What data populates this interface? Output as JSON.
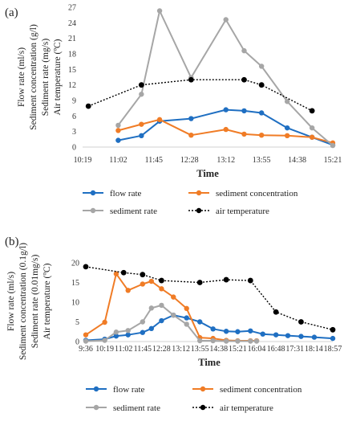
{
  "chart_data": [
    {
      "panel": "(a)",
      "type": "line",
      "ylabel": [
        "Flow rate (ml/s)",
        "Sediment concentration (g/l)",
        "Sediment rate (mg/s)",
        "Air temperature (ºC)"
      ],
      "xlabel": "Time",
      "ylim": [
        0,
        27
      ],
      "yticks": [
        "0",
        "3",
        "6",
        "9",
        "12",
        "15",
        "18",
        "21",
        "24",
        "27"
      ],
      "xlim": [
        "10:19",
        "15:21"
      ],
      "xticks": [
        "10:19",
        "11:02",
        "11:45",
        "12:28",
        "13:12",
        "13:55",
        "14:38",
        "15:21"
      ],
      "series": [
        {
          "name": "flow rate",
          "color": "#1f6fc2",
          "x": [
            "11:02",
            "11:30",
            "11:52",
            "12:30",
            "13:12",
            "13:34",
            "13:55",
            "14:26",
            "14:56",
            "15:21"
          ],
          "y": [
            1.3,
            2.2,
            5.0,
            5.5,
            7.2,
            7.0,
            6.6,
            3.7,
            1.9,
            0.4
          ]
        },
        {
          "name": "sediment concentration",
          "color": "#f07c26",
          "x": [
            "11:02",
            "11:30",
            "11:52",
            "12:30",
            "13:12",
            "13:34",
            "13:55",
            "14:26",
            "14:56",
            "15:21"
          ],
          "y": [
            3.2,
            4.4,
            5.3,
            2.3,
            3.4,
            2.5,
            2.3,
            2.2,
            1.9,
            0.8
          ]
        },
        {
          "name": "sediment rate",
          "color": "#a6a6a6",
          "x": [
            "11:02",
            "11:30",
            "11:52",
            "12:30",
            "13:12",
            "13:34",
            "13:55",
            "14:26",
            "14:56",
            "15:21"
          ],
          "y": [
            4.2,
            10.2,
            26.3,
            13.4,
            24.6,
            18.6,
            15.6,
            8.8,
            3.7,
            0.3
          ]
        },
        {
          "name": "air temperature",
          "color": "#000000",
          "x": [
            "10:26",
            "11:30",
            "12:30",
            "13:34",
            "13:55",
            "14:56"
          ],
          "y": [
            7.9,
            12.0,
            13.0,
            13.0,
            12.0,
            7.0
          ]
        }
      ],
      "legend": "bottom"
    },
    {
      "panel": "(b)",
      "type": "line",
      "ylabel": [
        "Flow rate (ml/s)",
        "Sediment concentration (0.1g/l)",
        "Sediment rate (0.01mg/s)",
        "Air temperature (ºC)"
      ],
      "xlabel": "Time",
      "ylim": [
        0,
        20
      ],
      "yticks": [
        "0",
        "5",
        "10",
        "15",
        "20"
      ],
      "xlim": [
        "9:36",
        "18:57"
      ],
      "xticks": [
        "9:36",
        "10:19",
        "11:02",
        "11:45",
        "12:28",
        "13:12",
        "13:55",
        "14:38",
        "15:21",
        "16:04",
        "16:48",
        "17:31",
        "18:14",
        "18:57"
      ],
      "series": [
        {
          "name": "flow rate",
          "color": "#1f6fc2",
          "x": [
            "9:36",
            "10:19",
            "10:45",
            "11:12",
            "11:45",
            "12:05",
            "12:28",
            "12:55",
            "13:25",
            "13:55",
            "14:25",
            "14:55",
            "15:21",
            "15:50",
            "16:18",
            "16:48",
            "17:15",
            "17:45",
            "18:15",
            "18:57"
          ],
          "y": [
            0.3,
            0.6,
            1.4,
            1.7,
            2.3,
            3.3,
            5.3,
            6.7,
            6.0,
            5.0,
            3.2,
            2.6,
            2.5,
            2.7,
            1.9,
            1.7,
            1.5,
            1.3,
            1.1,
            0.8
          ]
        },
        {
          "name": "sediment concentration",
          "color": "#f07c26",
          "x": [
            "9:36",
            "10:19",
            "10:45",
            "11:12",
            "11:45",
            "12:05",
            "12:28",
            "12:55",
            "13:25",
            "13:55",
            "14:25",
            "14:55",
            "15:21",
            "15:50",
            "16:04"
          ],
          "y": [
            1.7,
            4.9,
            17.2,
            13.0,
            14.6,
            15.3,
            13.4,
            11.3,
            8.4,
            1.0,
            0.8,
            0.3,
            0.2,
            0.2,
            0.2
          ]
        },
        {
          "name": "sediment rate",
          "color": "#a6a6a6",
          "x": [
            "9:36",
            "10:19",
            "10:45",
            "11:12",
            "11:45",
            "12:05",
            "12:28",
            "12:55",
            "13:25",
            "13:55",
            "14:25",
            "14:55",
            "15:21",
            "15:50",
            "16:04"
          ],
          "y": [
            0.1,
            0.3,
            2.4,
            2.8,
            5.0,
            8.5,
            9.2,
            6.7,
            4.4,
            0.2,
            0.2,
            0.1,
            0.1,
            0.1,
            0.1
          ]
        },
        {
          "name": "air temperature",
          "color": "#000000",
          "x": [
            "9:36",
            "11:02",
            "11:45",
            "12:28",
            "13:55",
            "14:55",
            "15:50",
            "16:48",
            "17:45",
            "18:57"
          ],
          "y": [
            19.0,
            17.5,
            17.0,
            15.5,
            15.0,
            15.7,
            15.5,
            7.5,
            5.0,
            3.0
          ]
        }
      ],
      "legend": "bottom"
    }
  ]
}
